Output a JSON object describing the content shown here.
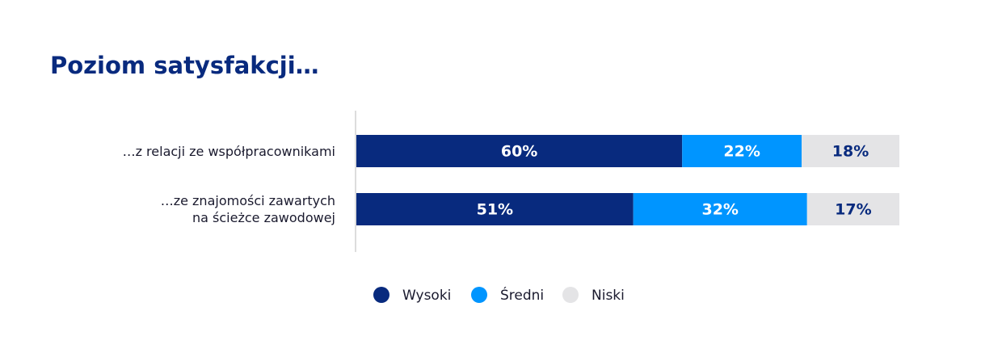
{
  "chart_data": {
    "type": "stacked-barh",
    "title": "Poziom satysfakcji…",
    "categories": [
      "…z relacji ze współpracownikami",
      "…ze znajomości zawartych\nna ścieżce zawodowej"
    ],
    "series": [
      {
        "name": "Wysoki",
        "color": "#082a7e",
        "label_color": "#ffffff",
        "values": [
          60,
          51
        ],
        "value_labels": [
          "60%",
          "51%"
        ]
      },
      {
        "name": "Średni",
        "color": "#0095ff",
        "label_color": "#ffffff",
        "values": [
          22,
          32
        ],
        "value_labels": [
          "22%",
          "32%"
        ]
      },
      {
        "name": "Niski",
        "color": "#e4e4e6",
        "label_color": "#082a7e",
        "values": [
          18,
          17
        ],
        "value_labels": [
          "18%",
          "17%"
        ]
      }
    ],
    "xlim": [
      0,
      100
    ],
    "legend": "bottom"
  }
}
